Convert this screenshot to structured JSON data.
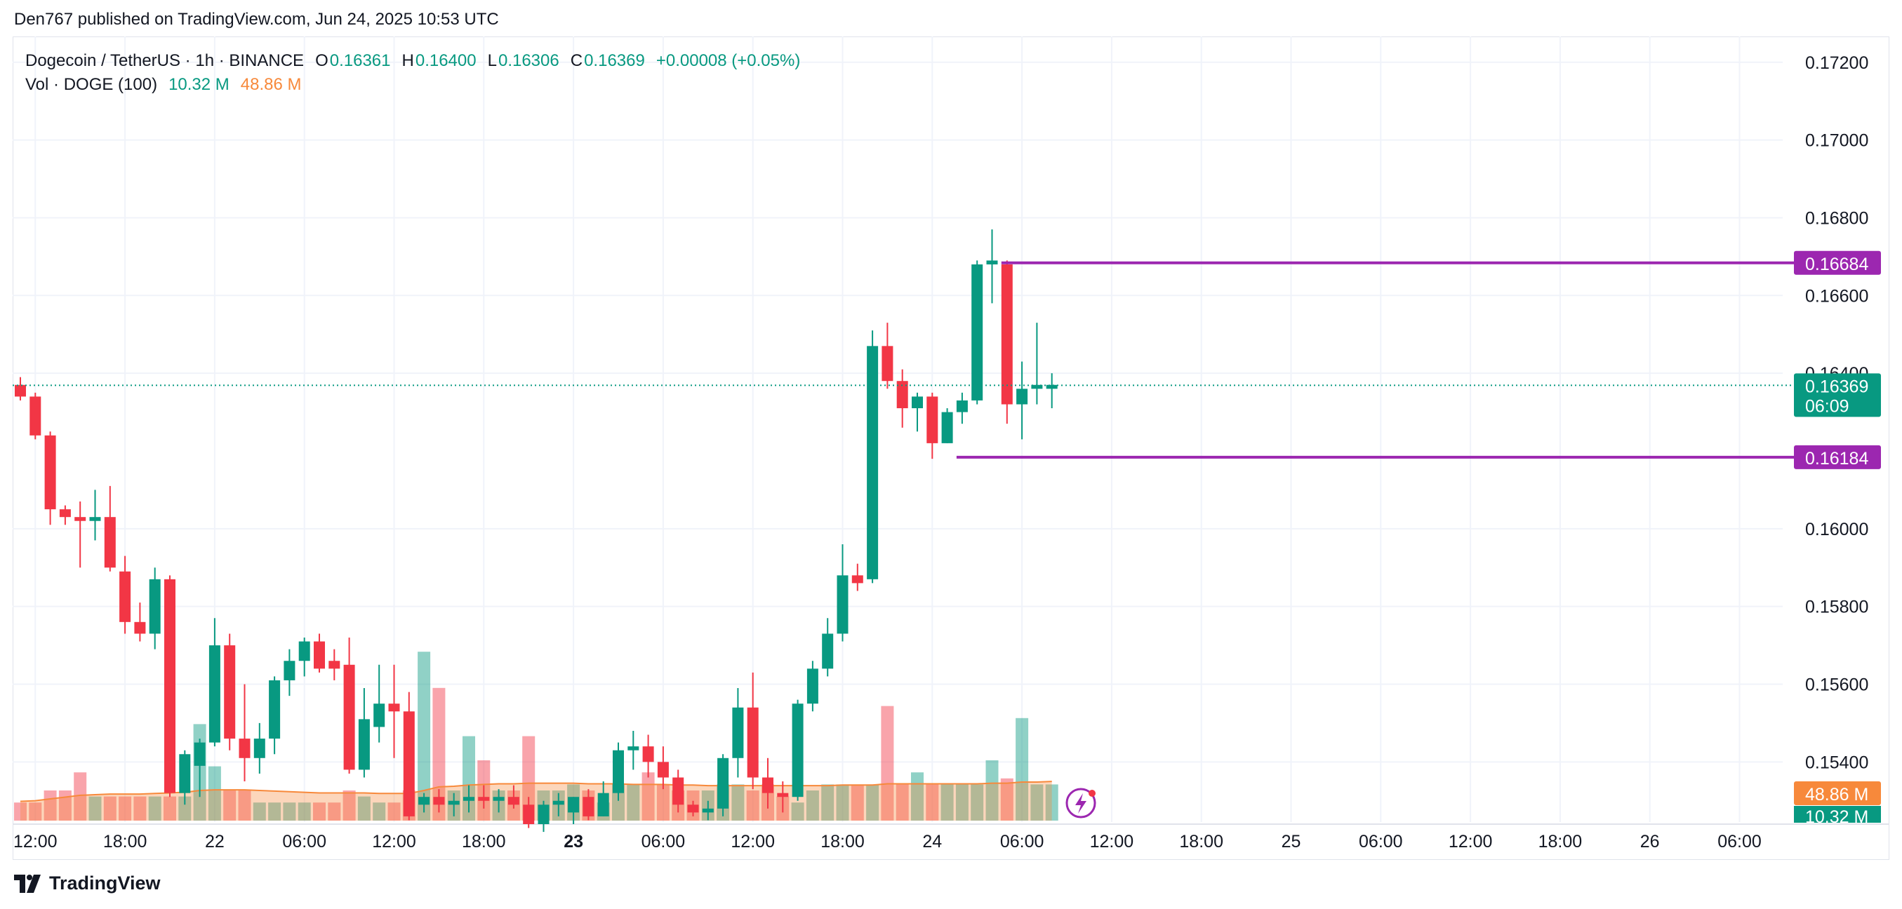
{
  "publisher": "Den767 published on TradingView.com, Jun 24, 2025 10:53 UTC",
  "legend": {
    "symbol": "Dogecoin / TetherUS · 1h · BINANCE",
    "o_label": "O",
    "o_value": "0.16361",
    "h_label": "H",
    "h_value": "0.16400",
    "l_label": "L",
    "l_value": "0.16306",
    "c_label": "C",
    "c_value": "0.16369",
    "change": "+0.00008 (+0.05%)",
    "vol_label": "Vol · DOGE (100)",
    "vol_value": "10.32 M",
    "vol_ma_value": "48.86 M"
  },
  "brand": "TradingView",
  "colors": {
    "up": "#089981",
    "down": "#f23645",
    "level": "#9c27b0",
    "current": "#089981",
    "vol_ma": "#f7893b"
  },
  "chart_data": {
    "type": "candlestick",
    "y_axis_ticks": [
      "0.17200",
      "0.17000",
      "0.16800",
      "0.16600",
      "0.16400",
      "0.16000",
      "0.15800",
      "0.15600",
      "0.15400"
    ],
    "ylim": [
      0.1524,
      0.1727
    ],
    "x_axis_ticks": [
      {
        "label": "12:00",
        "bar": 1
      },
      {
        "label": "18:00",
        "bar": 7
      },
      {
        "label": "22",
        "bar": 13
      },
      {
        "label": "06:00",
        "bar": 19
      },
      {
        "label": "12:00",
        "bar": 25
      },
      {
        "label": "18:00",
        "bar": 31
      },
      {
        "label": "23",
        "bar": 37,
        "bold": true
      },
      {
        "label": "06:00",
        "bar": 43
      },
      {
        "label": "12:00",
        "bar": 49
      },
      {
        "label": "18:00",
        "bar": 55
      },
      {
        "label": "24",
        "bar": 61
      },
      {
        "label": "06:00",
        "bar": 67
      },
      {
        "label": "12:00",
        "bar": 73
      },
      {
        "label": "18:00",
        "bar": 79
      },
      {
        "label": "25",
        "bar": 85
      },
      {
        "label": "06:00",
        "bar": 91
      },
      {
        "label": "12:00",
        "bar": 97
      },
      {
        "label": "18:00",
        "bar": 103
      },
      {
        "label": "26",
        "bar": 109
      },
      {
        "label": "06:00",
        "bar": 115
      }
    ],
    "candles": [
      {
        "o": 0.1637,
        "h": 0.1639,
        "l": 0.1633,
        "c": 0.1634
      },
      {
        "o": 0.1634,
        "h": 0.1635,
        "l": 0.1623,
        "c": 0.1624
      },
      {
        "o": 0.1624,
        "h": 0.1625,
        "l": 0.1601,
        "c": 0.1605
      },
      {
        "o": 0.1605,
        "h": 0.1606,
        "l": 0.1601,
        "c": 0.1603
      },
      {
        "o": 0.1603,
        "h": 0.1607,
        "l": 0.159,
        "c": 0.1602
      },
      {
        "o": 0.1602,
        "h": 0.161,
        "l": 0.1597,
        "c": 0.1603
      },
      {
        "o": 0.1603,
        "h": 0.1611,
        "l": 0.1589,
        "c": 0.159
      },
      {
        "o": 0.1589,
        "h": 0.1593,
        "l": 0.1573,
        "c": 0.1576
      },
      {
        "o": 0.1576,
        "h": 0.1581,
        "l": 0.1571,
        "c": 0.1573
      },
      {
        "o": 0.1573,
        "h": 0.159,
        "l": 0.1569,
        "c": 0.1587
      },
      {
        "o": 0.1587,
        "h": 0.1588,
        "l": 0.1531,
        "c": 0.1532
      },
      {
        "o": 0.1532,
        "h": 0.1543,
        "l": 0.1529,
        "c": 0.1542
      },
      {
        "o": 0.1539,
        "h": 0.1546,
        "l": 0.1531,
        "c": 0.1545
      },
      {
        "o": 0.1545,
        "h": 0.1577,
        "l": 0.1544,
        "c": 0.157
      },
      {
        "o": 0.157,
        "h": 0.1573,
        "l": 0.1543,
        "c": 0.1546
      },
      {
        "o": 0.1546,
        "h": 0.156,
        "l": 0.1535,
        "c": 0.1541
      },
      {
        "o": 0.1541,
        "h": 0.155,
        "l": 0.1537,
        "c": 0.1546
      },
      {
        "o": 0.1546,
        "h": 0.1562,
        "l": 0.1542,
        "c": 0.1561
      },
      {
        "o": 0.1561,
        "h": 0.1569,
        "l": 0.1557,
        "c": 0.1566
      },
      {
        "o": 0.1566,
        "h": 0.1572,
        "l": 0.1562,
        "c": 0.1571
      },
      {
        "o": 0.1571,
        "h": 0.1573,
        "l": 0.1563,
        "c": 0.1564
      },
      {
        "o": 0.1566,
        "h": 0.1569,
        "l": 0.1561,
        "c": 0.1564
      },
      {
        "o": 0.1565,
        "h": 0.1572,
        "l": 0.1537,
        "c": 0.1538
      },
      {
        "o": 0.1538,
        "h": 0.1559,
        "l": 0.1536,
        "c": 0.1551
      },
      {
        "o": 0.1549,
        "h": 0.1565,
        "l": 0.1545,
        "c": 0.1555
      },
      {
        "o": 0.1555,
        "h": 0.1565,
        "l": 0.1541,
        "c": 0.1553
      },
      {
        "o": 0.1553,
        "h": 0.1558,
        "l": 0.1525,
        "c": 0.1526
      },
      {
        "o": 0.1529,
        "h": 0.1532,
        "l": 0.1527,
        "c": 0.1531
      },
      {
        "o": 0.1531,
        "h": 0.1533,
        "l": 0.1527,
        "c": 0.1529
      },
      {
        "o": 0.1529,
        "h": 0.1532,
        "l": 0.1526,
        "c": 0.153
      },
      {
        "o": 0.153,
        "h": 0.1534,
        "l": 0.1527,
        "c": 0.1531
      },
      {
        "o": 0.1531,
        "h": 0.1534,
        "l": 0.1528,
        "c": 0.153
      },
      {
        "o": 0.153,
        "h": 0.1533,
        "l": 0.1527,
        "c": 0.1531
      },
      {
        "o": 0.1531,
        "h": 0.1534,
        "l": 0.1528,
        "c": 0.1529
      },
      {
        "o": 0.1529,
        "h": 0.1531,
        "l": 0.1523,
        "c": 0.1524
      },
      {
        "o": 0.1524,
        "h": 0.153,
        "l": 0.1522,
        "c": 0.1529
      },
      {
        "o": 0.1529,
        "h": 0.1532,
        "l": 0.1526,
        "c": 0.153
      },
      {
        "o": 0.1527,
        "h": 0.1531,
        "l": 0.1524,
        "c": 0.1531
      },
      {
        "o": 0.1531,
        "h": 0.1533,
        "l": 0.1525,
        "c": 0.1526
      },
      {
        "o": 0.1526,
        "h": 0.1535,
        "l": 0.1526,
        "c": 0.1532
      },
      {
        "o": 0.1532,
        "h": 0.1545,
        "l": 0.153,
        "c": 0.1543
      },
      {
        "o": 0.1543,
        "h": 0.1548,
        "l": 0.1538,
        "c": 0.1544
      },
      {
        "o": 0.1544,
        "h": 0.1547,
        "l": 0.1536,
        "c": 0.154
      },
      {
        "o": 0.154,
        "h": 0.1544,
        "l": 0.1533,
        "c": 0.1536
      },
      {
        "o": 0.1536,
        "h": 0.1538,
        "l": 0.1527,
        "c": 0.1529
      },
      {
        "o": 0.1529,
        "h": 0.153,
        "l": 0.1526,
        "c": 0.1527
      },
      {
        "o": 0.1527,
        "h": 0.153,
        "l": 0.1525,
        "c": 0.1528
      },
      {
        "o": 0.1528,
        "h": 0.1542,
        "l": 0.1526,
        "c": 0.1541
      },
      {
        "o": 0.1541,
        "h": 0.1559,
        "l": 0.1536,
        "c": 0.1554
      },
      {
        "o": 0.1554,
        "h": 0.1563,
        "l": 0.1533,
        "c": 0.1536
      },
      {
        "o": 0.1536,
        "h": 0.1541,
        "l": 0.1528,
        "c": 0.1532
      },
      {
        "o": 0.1532,
        "h": 0.1535,
        "l": 0.1527,
        "c": 0.1531
      },
      {
        "o": 0.1531,
        "h": 0.1556,
        "l": 0.153,
        "c": 0.1555
      },
      {
        "o": 0.1555,
        "h": 0.1566,
        "l": 0.1553,
        "c": 0.1564
      },
      {
        "o": 0.1564,
        "h": 0.1577,
        "l": 0.1562,
        "c": 0.1573
      },
      {
        "o": 0.1573,
        "h": 0.1596,
        "l": 0.1571,
        "c": 0.1588
      },
      {
        "o": 0.1588,
        "h": 0.1591,
        "l": 0.1584,
        "c": 0.1586
      },
      {
        "o": 0.1587,
        "h": 0.1651,
        "l": 0.1586,
        "c": 0.1647
      },
      {
        "o": 0.1647,
        "h": 0.1653,
        "l": 0.1636,
        "c": 0.1638
      },
      {
        "o": 0.1638,
        "h": 0.1641,
        "l": 0.1626,
        "c": 0.1631
      },
      {
        "o": 0.1631,
        "h": 0.1635,
        "l": 0.1625,
        "c": 0.1634
      },
      {
        "o": 0.1634,
        "h": 0.1635,
        "l": 0.1618,
        "c": 0.1622
      },
      {
        "o": 0.1622,
        "h": 0.1631,
        "l": 0.1622,
        "c": 0.163
      },
      {
        "o": 0.163,
        "h": 0.1635,
        "l": 0.1627,
        "c": 0.1633
      },
      {
        "o": 0.1633,
        "h": 0.1669,
        "l": 0.1632,
        "c": 0.1668
      },
      {
        "o": 0.1668,
        "h": 0.1677,
        "l": 0.1658,
        "c": 0.1669
      },
      {
        "o": 0.1668,
        "h": 0.1669,
        "l": 0.1627,
        "c": 0.1632
      },
      {
        "o": 0.1632,
        "h": 0.1643,
        "l": 0.1623,
        "c": 0.1636
      },
      {
        "o": 0.1636,
        "h": 0.1653,
        "l": 0.1632,
        "c": 0.1637
      },
      {
        "o": 0.1636,
        "h": 0.164,
        "l": 0.1631,
        "c": 0.1637
      }
    ],
    "volume": {
      "values": [
        3,
        3,
        5,
        5,
        8,
        4,
        4,
        4,
        4,
        4,
        4,
        4,
        16,
        9,
        5,
        5,
        3,
        3,
        3,
        3,
        3,
        3,
        5,
        4,
        3,
        3,
        5,
        28,
        22,
        5,
        14,
        10,
        5,
        5,
        14,
        5,
        5,
        6,
        5,
        3,
        6,
        6,
        8,
        6,
        5,
        5,
        5,
        6,
        6,
        5,
        6,
        4,
        3,
        5,
        6,
        6,
        6,
        6,
        19,
        6,
        8,
        6,
        6,
        6,
        6,
        10,
        7,
        17,
        6,
        6
      ],
      "ma": [
        3.2,
        3.3,
        3.6,
        3.9,
        4.2,
        4.3,
        4.4,
        4.4,
        4.4,
        4.5,
        4.6,
        4.7,
        5.0,
        5.1,
        5.1,
        5.1,
        5.0,
        4.9,
        4.8,
        4.7,
        4.6,
        4.6,
        4.6,
        4.6,
        4.5,
        4.5,
        4.5,
        5.0,
        5.6,
        5.7,
        5.9,
        6.0,
        6.1,
        6.1,
        6.2,
        6.2,
        6.2,
        6.2,
        6.1,
        6.1,
        6.1,
        6.0,
        6.0,
        6.0,
        5.9,
        5.9,
        5.8,
        5.8,
        5.8,
        5.8,
        5.8,
        5.8,
        5.8,
        5.8,
        5.8,
        5.9,
        5.9,
        5.9,
        6.1,
        6.1,
        6.1,
        6.1,
        6.1,
        6.1,
        6.1,
        6.2,
        6.2,
        6.4,
        6.4,
        6.5
      ]
    },
    "horizontal_levels": [
      {
        "price": "0.16684",
        "value": 0.16684,
        "from_bar": 66
      },
      {
        "price": "0.16184",
        "value": 0.16184,
        "from_bar": 63
      }
    ],
    "last_price": {
      "price": "0.16369",
      "value": 0.16369,
      "countdown": "06:09"
    },
    "axis_volume_labels": {
      "ma": "48.86 M",
      "vol": "10.32 M"
    }
  }
}
